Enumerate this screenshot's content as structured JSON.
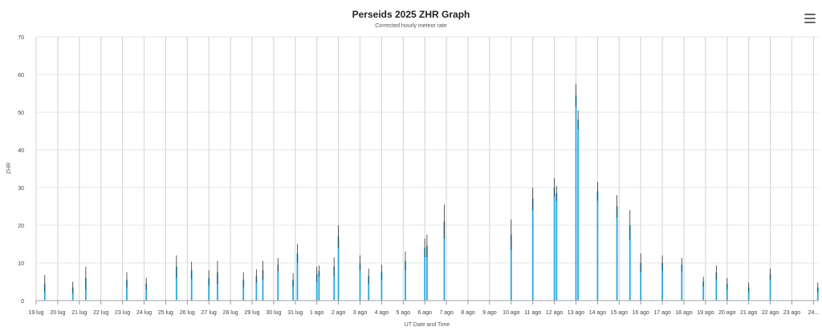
{
  "header": {
    "title": "Perseids 2025 ZHR Graph",
    "subtitle": "Corrected hourly meteor rate",
    "menu_icon": "hamburger-menu-icon"
  },
  "chart_data": {
    "type": "bar",
    "title": "Perseids 2025 ZHR Graph",
    "subtitle": "Corrected hourly meteor rate",
    "xlabel": "UT Date and Time",
    "ylabel": "ZHR",
    "ylim": [
      0,
      70
    ],
    "yticks": [
      0,
      10,
      20,
      30,
      40,
      50,
      60,
      70
    ],
    "grid": true,
    "legend": "none",
    "colors": {
      "bar": "#29a9e0",
      "error": "#333333",
      "gridline": "#e6e6e6",
      "dayline": "#d9d9d9"
    },
    "day_labels": [
      "19 lug",
      "20 lug",
      "21 lug",
      "22 lug",
      "23 lug",
      "24 lug",
      "25 lug",
      "26 lug",
      "27 lug",
      "28 lug",
      "29 lug",
      "30 lug",
      "31 lug",
      "1 ago",
      "2 ago",
      "3 ago",
      "4 ago",
      "5 ago",
      "6 ago",
      "7 ago",
      "8 ago",
      "9 ago",
      "10 ago",
      "11 ago",
      "12 ago",
      "13 ago",
      "14 ago",
      "15 ago",
      "16 ago",
      "17 ago",
      "18 ago",
      "19 ago",
      "20 ago",
      "21 ago",
      "22 ago",
      "23 ago",
      "24..."
    ],
    "series": [
      {
        "points": [
          {
            "day": 0.4,
            "zhr": 4.5,
            "err": 2.3
          },
          {
            "day": 1.7,
            "zhr": 3.5,
            "err": 1.5
          },
          {
            "day": 2.3,
            "zhr": 6.0,
            "err": 3.0
          },
          {
            "day": 4.2,
            "zhr": 5.5,
            "err": 2.0
          },
          {
            "day": 5.1,
            "zhr": 4.5,
            "err": 1.5
          },
          {
            "day": 6.5,
            "zhr": 9.0,
            "err": 3.0
          },
          {
            "day": 7.2,
            "zhr": 8.0,
            "err": 2.3
          },
          {
            "day": 8.0,
            "zhr": 6.0,
            "err": 2.0
          },
          {
            "day": 8.4,
            "zhr": 7.5,
            "err": 3.0
          },
          {
            "day": 9.6,
            "zhr": 5.5,
            "err": 2.0
          },
          {
            "day": 10.2,
            "zhr": 6.5,
            "err": 1.8
          },
          {
            "day": 10.5,
            "zhr": 8.0,
            "err": 2.5
          },
          {
            "day": 11.2,
            "zhr": 9.5,
            "err": 1.8
          },
          {
            "day": 11.9,
            "zhr": 5.5,
            "err": 1.8
          },
          {
            "day": 12.1,
            "zhr": 12.5,
            "err": 2.5
          },
          {
            "day": 13.0,
            "zhr": 7.0,
            "err": 2.0
          },
          {
            "day": 13.1,
            "zhr": 7.8,
            "err": 1.5
          },
          {
            "day": 13.8,
            "zhr": 9.0,
            "err": 2.5
          },
          {
            "day": 14.0,
            "zhr": 17.0,
            "err": 3.0
          },
          {
            "day": 15.0,
            "zhr": 10.0,
            "err": 2.0
          },
          {
            "day": 15.4,
            "zhr": 6.5,
            "err": 2.0
          },
          {
            "day": 16.0,
            "zhr": 7.5,
            "err": 2.0
          },
          {
            "day": 17.1,
            "zhr": 10.5,
            "err": 2.5
          },
          {
            "day": 18.0,
            "zhr": 14.0,
            "err": 2.5
          },
          {
            "day": 18.1,
            "zhr": 14.5,
            "err": 3.0
          },
          {
            "day": 18.9,
            "zhr": 21.0,
            "err": 4.5
          },
          {
            "day": 22.0,
            "zhr": 17.5,
            "err": 4.0
          },
          {
            "day": 23.0,
            "zhr": 27.0,
            "err": 3.0
          },
          {
            "day": 24.0,
            "zhr": 30.0,
            "err": 2.5
          },
          {
            "day": 24.1,
            "zhr": 28.5,
            "err": 2.0
          },
          {
            "day": 25.0,
            "zhr": 54.5,
            "err": 3.0
          },
          {
            "day": 25.1,
            "zhr": 48.0,
            "err": 2.5
          },
          {
            "day": 26.0,
            "zhr": 29.0,
            "err": 2.5
          },
          {
            "day": 26.9,
            "zhr": 25.0,
            "err": 3.0
          },
          {
            "day": 27.5,
            "zhr": 20.0,
            "err": 4.0
          },
          {
            "day": 28.0,
            "zhr": 10.0,
            "err": 2.5
          },
          {
            "day": 29.0,
            "zhr": 10.0,
            "err": 2.0
          },
          {
            "day": 29.9,
            "zhr": 9.5,
            "err": 1.8
          },
          {
            "day": 30.9,
            "zhr": 5.0,
            "err": 1.3
          },
          {
            "day": 31.5,
            "zhr": 7.5,
            "err": 1.8
          },
          {
            "day": 32.0,
            "zhr": 4.5,
            "err": 1.5
          },
          {
            "day": 33.0,
            "zhr": 3.5,
            "err": 1.3
          },
          {
            "day": 34.0,
            "zhr": 7.0,
            "err": 1.5
          },
          {
            "day": 36.2,
            "zhr": 3.5,
            "err": 1.3
          }
        ]
      }
    ]
  }
}
